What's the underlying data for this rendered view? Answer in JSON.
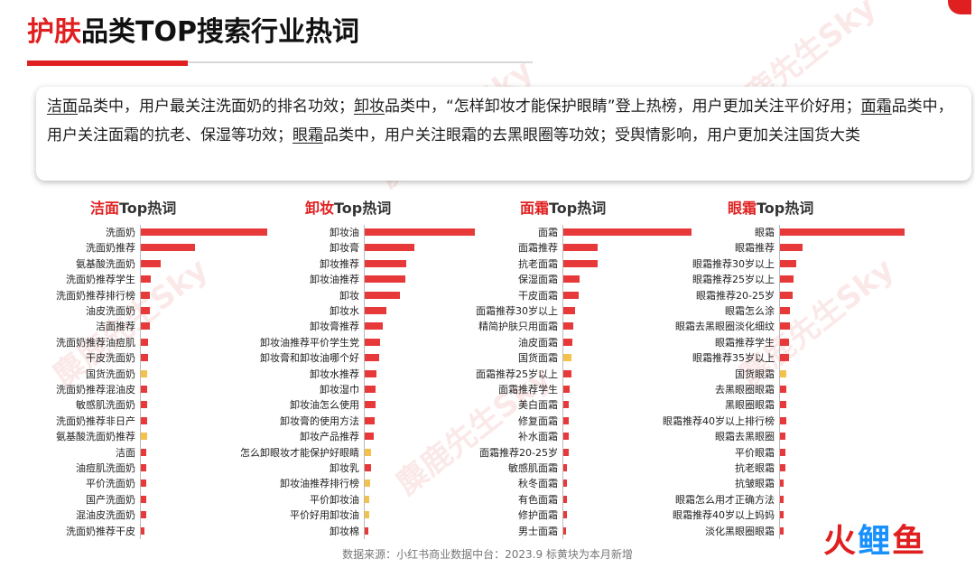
{
  "title": {
    "accent": "护肤",
    "rest": "品类TOP搜索行业热词"
  },
  "summary": {
    "k1": "洁面",
    "t1": "品类中，用户最关注洗面奶的排名功效；",
    "k2": "卸妆",
    "t2": "品类中，“怎样卸妆才能保护眼睛”登上热榜，用户更加关注平价好用；",
    "k3": "面霜",
    "t3": "品类中，用户关注面霜的抗老、保湿等功效；",
    "k4": "眼霜",
    "t4": "品类中，用户关注眼霜的去黑眼圈等功效；受舆情影响，用户更加关注国货大类"
  },
  "source": "数据来源：小红书商业数据中台：2023.9 标黄块为本月新增",
  "logo": {
    "c1": "火",
    "c2": "鲤",
    "c3": "鱼"
  },
  "watermark": "麋鹿先生Sky",
  "colors": {
    "accent": "#e02020",
    "bar": "#e8393a",
    "new_bar": "#f4c24c"
  },
  "chart_data": [
    {
      "type": "bar",
      "orientation": "horizontal",
      "title_accent": "洁面",
      "title_rest": "Top热词",
      "categories": [
        "洗面奶",
        "洗面奶推荐",
        "氨基酸洗面奶",
        "洗面奶推荐学生",
        "洗面奶推荐排行榜",
        "油皮洗面奶",
        "洁面推荐",
        "洗面奶推荐油痘肌",
        "干皮洗面奶",
        "国货洗面奶",
        "洗面奶推荐混油皮",
        "敏感肌洗面奶",
        "洗面奶推荐非日产",
        "氨基酸洗面奶推荐",
        "洁面",
        "油痘肌洗面奶",
        "平价洗面奶",
        "国产洗面奶",
        "混油皮洗面奶",
        "洗面奶推荐干皮"
      ],
      "values": [
        100,
        43,
        16,
        8,
        7,
        7,
        7,
        6,
        6,
        5,
        5,
        5,
        5,
        5,
        4,
        4,
        4,
        4,
        4,
        3
      ],
      "new": [
        false,
        false,
        false,
        false,
        false,
        false,
        false,
        false,
        false,
        true,
        false,
        false,
        false,
        true,
        false,
        false,
        false,
        false,
        false,
        false
      ]
    },
    {
      "type": "bar",
      "orientation": "horizontal",
      "title_accent": "卸妆",
      "title_rest": "Top热词",
      "categories": [
        "卸妆油",
        "卸妆膏",
        "卸妆推荐",
        "卸妆油推荐",
        "卸妆",
        "卸妆水",
        "卸妆膏推荐",
        "卸妆油推荐平价学生党",
        "卸妆膏和卸妆油哪个好",
        "卸妆水推荐",
        "卸妆湿巾",
        "卸妆油怎么使用",
        "卸妆膏的使用方法",
        "卸妆产品推荐",
        "怎么卸眼妆才能保护好眼睛",
        "卸妆乳",
        "卸妆油推荐排行榜",
        "平价卸妆油",
        "平价好用卸妆油",
        "卸妆棉"
      ],
      "values": [
        100,
        45,
        38,
        37,
        32,
        20,
        16,
        14,
        13,
        11,
        10,
        10,
        9,
        8,
        6,
        6,
        5,
        4,
        4,
        3
      ],
      "new": [
        false,
        false,
        false,
        false,
        false,
        false,
        false,
        false,
        false,
        false,
        false,
        false,
        false,
        false,
        true,
        false,
        true,
        true,
        true,
        false
      ]
    },
    {
      "type": "bar",
      "orientation": "horizontal",
      "title_accent": "面霜",
      "title_rest": "Top热词",
      "categories": [
        "面霜",
        "面霜推荐",
        "抗老面霜",
        "保湿面霜",
        "干皮面霜",
        "面霜推荐30岁以上",
        "精简护肤只用面霜",
        "油皮面霜",
        "国货面霜",
        "面霜推荐25岁以上",
        "面霜推荐学生",
        "美白面霜",
        "修复面霜",
        "补水面霜",
        "面霜推荐20-25岁",
        "敏感肌面霜",
        "秋冬面霜",
        "有色面霜",
        "修护面霜",
        "男士面霜"
      ],
      "values": [
        100,
        27,
        27,
        13,
        12,
        9,
        8,
        7,
        6,
        6,
        5,
        4,
        4,
        4,
        4,
        3,
        3,
        3,
        3,
        2
      ],
      "new": [
        false,
        false,
        false,
        false,
        false,
        false,
        false,
        false,
        true,
        false,
        false,
        false,
        false,
        false,
        false,
        false,
        false,
        false,
        false,
        false
      ]
    },
    {
      "type": "bar",
      "orientation": "horizontal",
      "title_accent": "眼霜",
      "title_rest": "Top热词",
      "categories": [
        "眼霜",
        "眼霜推荐",
        "眼霜推荐30岁以上",
        "眼霜推荐25岁以上",
        "眼霜推荐20-25岁",
        "眼霜怎么涂",
        "眼霜去黑眼圈淡化细纹",
        "眼霜推荐学生",
        "眼霜推荐35岁以上",
        "国货眼霜",
        "去黑眼圈眼霜",
        "黑眼圈眼霜",
        "眼霜推荐40岁以上排行榜",
        "眼霜去黑眼圈",
        "平价眼霜",
        "抗老眼霜",
        "抗皱眼霜",
        "眼霜怎么用才正确方法",
        "眼霜推荐40岁以上妈妈",
        "淡化黑眼圈眼霜"
      ],
      "values": [
        100,
        18,
        13,
        11,
        10,
        8,
        8,
        7,
        7,
        5,
        5,
        5,
        5,
        4,
        4,
        4,
        3,
        3,
        3,
        3
      ],
      "new": [
        false,
        false,
        false,
        false,
        false,
        false,
        false,
        false,
        false,
        true,
        false,
        false,
        false,
        false,
        false,
        false,
        false,
        false,
        false,
        false
      ]
    }
  ]
}
